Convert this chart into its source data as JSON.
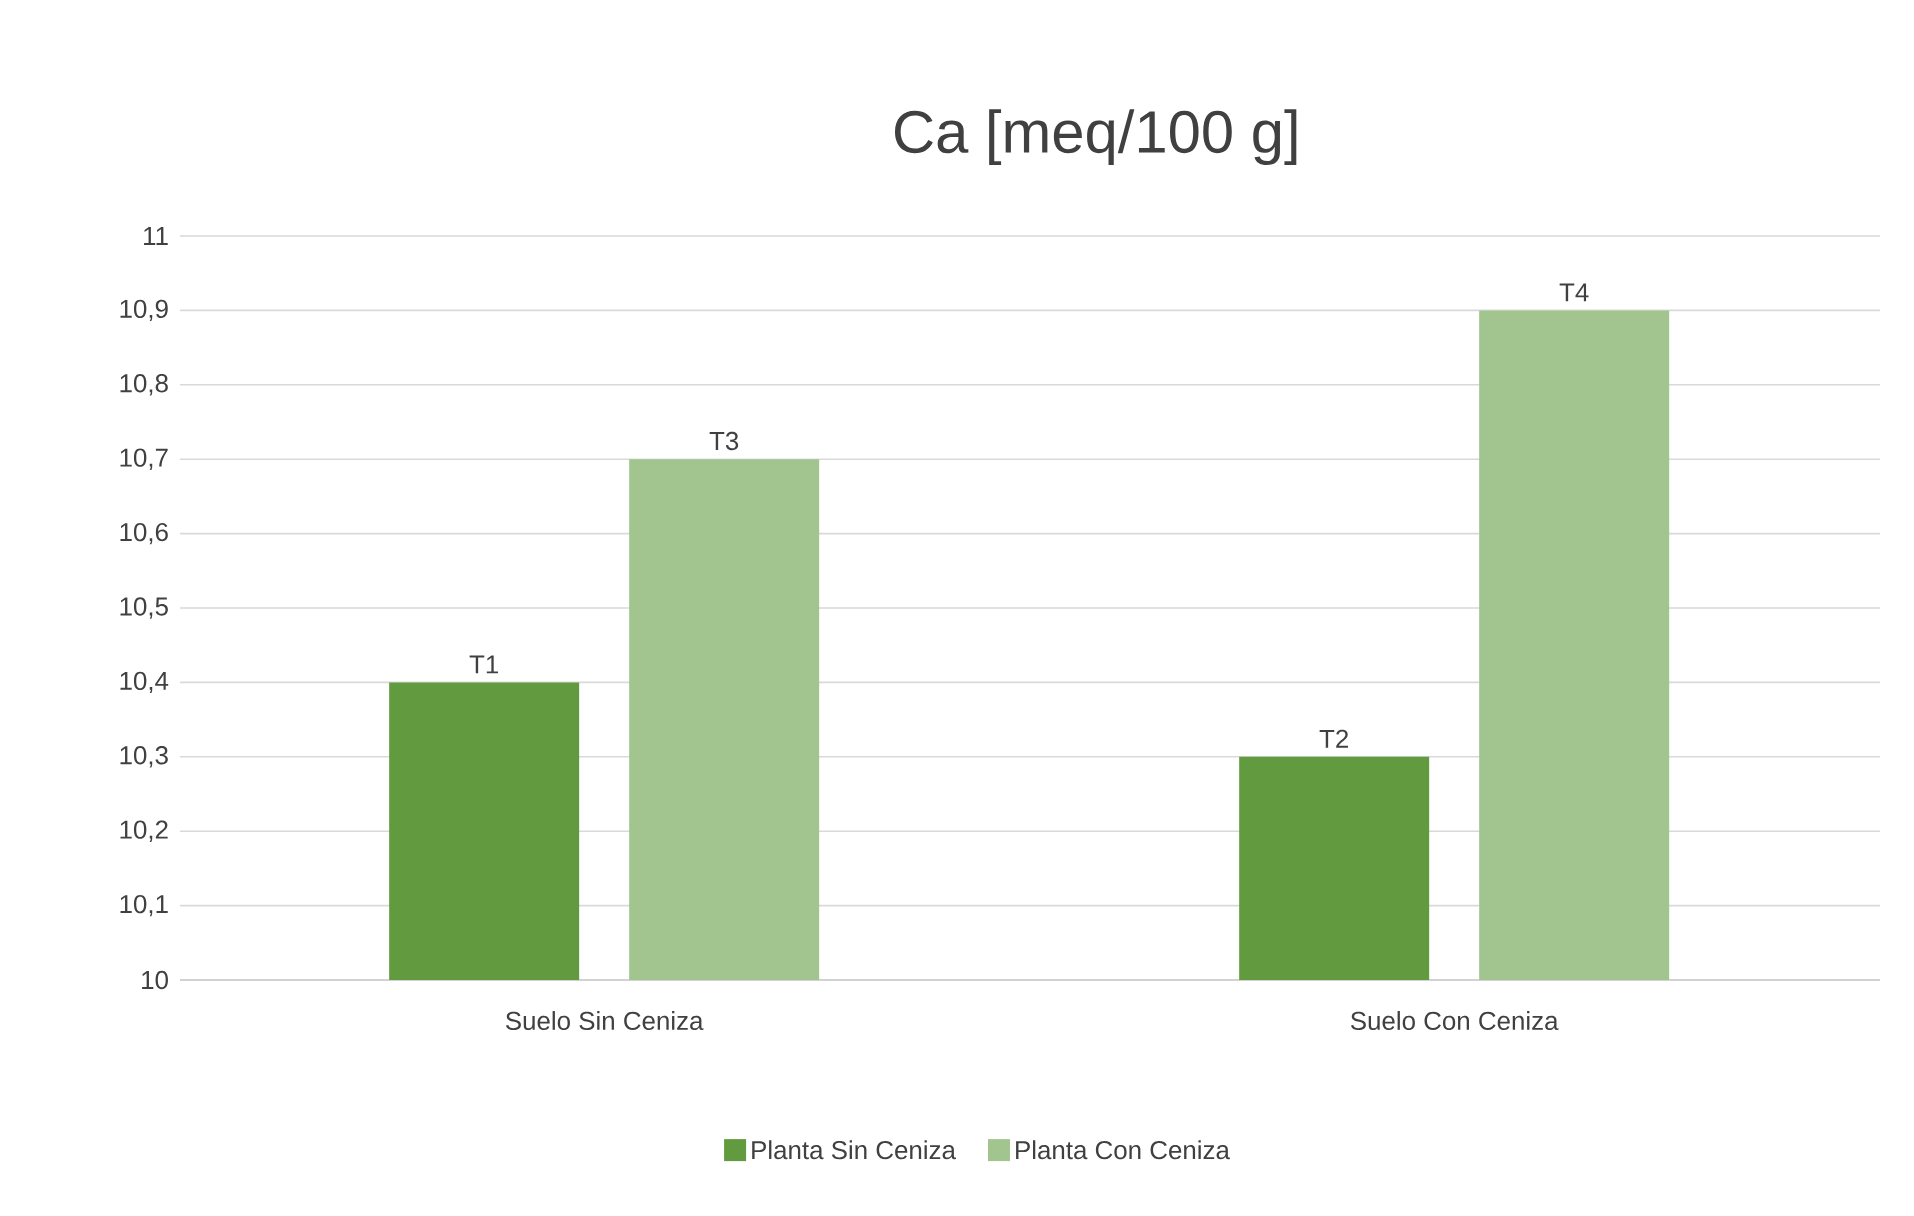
{
  "chart_data": {
    "type": "bar",
    "title": "Ca [meq/100 g]",
    "categories": [
      "Suelo Sin Ceniza",
      "Suelo Con Ceniza"
    ],
    "series": [
      {
        "name": "Planta Sin Ceniza",
        "color": "#629b3f",
        "values": [
          10.4,
          10.3
        ],
        "value_labels": [
          "T1",
          "T2"
        ]
      },
      {
        "name": "Planta Con Ceniza",
        "color": "#a2c590",
        "values": [
          10.7,
          10.9
        ],
        "value_labels": [
          "T3",
          "T4"
        ]
      }
    ],
    "ylim": [
      10,
      11
    ],
    "yticks": [
      10,
      {
        "value": 10.1,
        "label": "10,1"
      },
      {
        "value": 10.2,
        "label": "10,2"
      },
      {
        "value": 10.3,
        "label": "10,3"
      },
      {
        "value": 10.4,
        "label": "10,4"
      },
      {
        "value": 10.5,
        "label": "10,5"
      },
      {
        "value": 10.6,
        "label": "10,6"
      },
      {
        "value": 10.7,
        "label": "10,7"
      },
      {
        "value": 10.8,
        "label": "10,8"
      },
      {
        "value": 10.9,
        "label": "10,9"
      },
      11
    ],
    "grid": "y",
    "legend": "bottom"
  }
}
